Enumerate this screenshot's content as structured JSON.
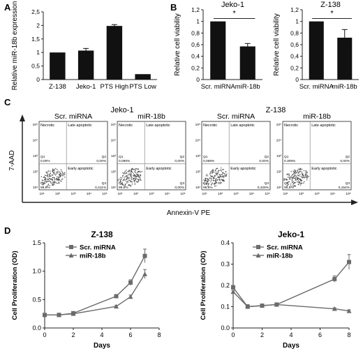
{
  "panels": {
    "A": {
      "letter": "A"
    },
    "B": {
      "letter": "B"
    },
    "C": {
      "letter": "C"
    },
    "D": {
      "letter": "D"
    }
  },
  "colors": {
    "bar": "#111111",
    "line": "#6b6b6b",
    "dot": "#555555",
    "axis": "#222222",
    "grid": "#888888"
  },
  "chart_data": [
    {
      "id": "A",
      "type": "bar",
      "categories": [
        "Z-138",
        "Jeko-1",
        "PTS High",
        "PTS Low"
      ],
      "values": [
        1.0,
        1.07,
        1.98,
        0.2
      ],
      "errors": [
        0,
        0.08,
        0.05,
        0
      ],
      "ylabel": "Relative miR-18b expression",
      "ylim": [
        0,
        2.5
      ],
      "yticks": [
        "0",
        "0,5",
        "1",
        "1,5",
        "2",
        "2,5"
      ],
      "ytick_values": [
        0,
        0.5,
        1,
        1.5,
        2,
        2.5
      ]
    },
    {
      "id": "B1",
      "type": "bar",
      "title": "Jeko-1",
      "categories": [
        "Scr. miRNA",
        "miR-18b"
      ],
      "values": [
        1.0,
        0.57
      ],
      "errors": [
        0,
        0.05
      ],
      "ylabel": "Relative cell viability",
      "ylim": [
        0,
        1.2
      ],
      "yticks": [
        "0",
        "0,2",
        "0,4",
        "0,6",
        "0,8",
        "1",
        "1,2"
      ],
      "ytick_values": [
        0,
        0.2,
        0.4,
        0.6,
        0.8,
        1.0,
        1.2
      ],
      "significance": "*"
    },
    {
      "id": "B2",
      "type": "bar",
      "title": "Z-138",
      "categories": [
        "Scr. miRNA",
        "miR-18b"
      ],
      "values": [
        1.0,
        0.72
      ],
      "errors": [
        0,
        0.14
      ],
      "ylabel": "Relative cell viability",
      "ylim": [
        0,
        1.2
      ],
      "yticks": [
        "0",
        "0,2",
        "0,4",
        "0,6",
        "0,8",
        "1",
        "1,2"
      ],
      "ytick_values": [
        0,
        0.2,
        0.4,
        0.6,
        0.8,
        1.0,
        1.2
      ],
      "significance": "*"
    },
    {
      "id": "C",
      "type": "scatter",
      "group_titles": [
        "Jeko-1",
        "Z-138"
      ],
      "plot_titles": [
        "Scr. miRNA",
        "miR-18b",
        "Scr. miRNA",
        "miR-18b"
      ],
      "ylabel": "7-AAD",
      "xlabel": "Annexin-V PE",
      "quadrant_labels": {
        "necrotic": "Necrotic",
        "late": "Late apoptotic",
        "early": "Early apoptotic"
      },
      "yticks": [
        "10¹",
        "10²",
        "10³",
        "10⁴",
        "10⁵"
      ],
      "xticks": [
        "10¹",
        "10²",
        "10³",
        "10⁴",
        "10⁵"
      ],
      "plots": [
        {
          "q1": "Q1",
          "q1v": "0,00%",
          "q2": "Q2",
          "q2v": "0,00%",
          "q3": "Q3",
          "q3v": "0,411%",
          "q4": "Q4",
          "q4v": "99,6%"
        },
        {
          "q1": "Q1",
          "q1v": "0,096%",
          "q2": "Q2",
          "q2v": "0,00%",
          "q3": "Q3",
          "q3v": "0,00%",
          "q4": "Q4",
          "q4v": "99,9%"
        },
        {
          "q1": "Q1",
          "q1v": "0,068%",
          "q2": "Q2",
          "q2v": "0,00%",
          "q3": "Q3",
          "q3v": "0,429%",
          "q4": "Q4",
          "q4v": "99,5%"
        },
        {
          "q1": "Q1",
          "q1v": "0,309%",
          "q2": "Q2",
          "q2v": "0,00%",
          "q3": "Q3",
          "q3v": "0,154%",
          "q4": "Q4",
          "q4v": "99,5%"
        }
      ]
    },
    {
      "id": "D1",
      "type": "line",
      "title": "Z-138",
      "xlabel": "Days",
      "ylabel": "Cell Proliferation (OD)",
      "xlim": [
        0,
        8
      ],
      "ylim": [
        0,
        1.5
      ],
      "xticks": [
        0,
        2,
        4,
        6,
        8
      ],
      "yticks": [
        0.0,
        0.5,
        1.0,
        1.5
      ],
      "ytick_labels": [
        "0.0",
        "0.5",
        "1.0",
        "1.5"
      ],
      "series": [
        {
          "name": "Scr. miRNA",
          "marker": "square",
          "x": [
            0,
            1,
            2,
            5,
            6,
            7
          ],
          "y": [
            0.23,
            0.23,
            0.26,
            0.56,
            0.8,
            1.27
          ],
          "err": [
            0.02,
            0.02,
            0.03,
            0.03,
            0.05,
            0.12
          ]
        },
        {
          "name": "miR-18b",
          "marker": "triangle",
          "x": [
            0,
            1,
            2,
            5,
            6,
            7
          ],
          "y": [
            0.23,
            0.23,
            0.25,
            0.38,
            0.55,
            0.95
          ],
          "err": [
            0.02,
            0.02,
            0.02,
            0.02,
            0.03,
            0.08
          ]
        }
      ]
    },
    {
      "id": "D2",
      "type": "line",
      "title": "Jeko-1",
      "xlabel": "Days",
      "ylabel": "Cell Proliferation (OD)",
      "xlim": [
        0,
        8
      ],
      "ylim": [
        0,
        0.4
      ],
      "xticks": [
        0,
        2,
        4,
        6,
        8
      ],
      "yticks": [
        0.0,
        0.1,
        0.2,
        0.3,
        0.4
      ],
      "ytick_labels": [
        "0.0",
        "0.1",
        "0.2",
        "0.3",
        "0.4"
      ],
      "series": [
        {
          "name": "Scr. miRNA",
          "marker": "square",
          "x": [
            0,
            1,
            2,
            3,
            7,
            8
          ],
          "y": [
            0.19,
            0.1,
            0.105,
            0.11,
            0.23,
            0.31
          ],
          "err": [
            0.01,
            0.01,
            0.005,
            0.005,
            0.015,
            0.035
          ]
        },
        {
          "name": "miR-18b",
          "marker": "triangle",
          "x": [
            0,
            1,
            2,
            3,
            7,
            8
          ],
          "y": [
            0.17,
            0.1,
            0.105,
            0.11,
            0.09,
            0.08
          ],
          "err": [
            0.005,
            0.005,
            0.005,
            0.005,
            0.005,
            0.005
          ]
        }
      ]
    }
  ]
}
